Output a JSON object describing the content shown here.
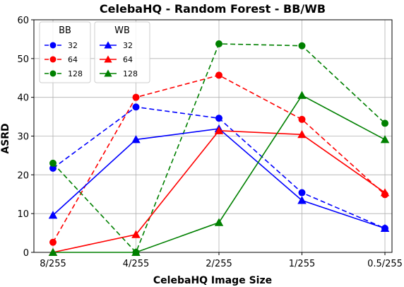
{
  "chart_data": {
    "type": "line",
    "title": "CelebaHQ - Random Forest - BB/WB",
    "xlabel": "CelebaHQ Image Size",
    "ylabel": "ASRD",
    "categories": [
      "8/255",
      "4/255",
      "2/255",
      "1/255",
      "0.5/255"
    ],
    "ylim": [
      0,
      60
    ],
    "yticks": [
      0,
      10,
      20,
      30,
      40,
      50,
      60
    ],
    "grid": true,
    "legend_placement": "top-left",
    "legend_groups": [
      {
        "title": "BB",
        "marker": "circle",
        "line_style": "dashed"
      },
      {
        "title": "WB",
        "marker": "triangle",
        "line_style": "solid"
      }
    ],
    "series": [
      {
        "name": "32",
        "group": "BB",
        "color": "#0000ff",
        "marker": "circle",
        "line_style": "dashed",
        "values": [
          21.7,
          37.5,
          34.6,
          15.4,
          6.2
        ]
      },
      {
        "name": "64",
        "group": "BB",
        "color": "#ff0000",
        "marker": "circle",
        "line_style": "dashed",
        "values": [
          2.6,
          40.0,
          45.7,
          34.3,
          14.9
        ]
      },
      {
        "name": "128",
        "group": "BB",
        "color": "#008000",
        "marker": "circle",
        "line_style": "dashed",
        "values": [
          23.0,
          0.0,
          53.8,
          53.3,
          33.3
        ]
      },
      {
        "name": "32",
        "group": "WB",
        "color": "#0000ff",
        "marker": "triangle",
        "line_style": "solid",
        "values": [
          9.6,
          29.1,
          31.9,
          13.4,
          6.2
        ]
      },
      {
        "name": "64",
        "group": "WB",
        "color": "#ff0000",
        "marker": "triangle",
        "line_style": "solid",
        "values": [
          0.0,
          4.6,
          31.4,
          30.4,
          15.4
        ]
      },
      {
        "name": "128",
        "group": "WB",
        "color": "#008000",
        "marker": "triangle",
        "line_style": "solid",
        "values": [
          0.0,
          0.0,
          7.7,
          40.5,
          29.1
        ]
      }
    ]
  }
}
